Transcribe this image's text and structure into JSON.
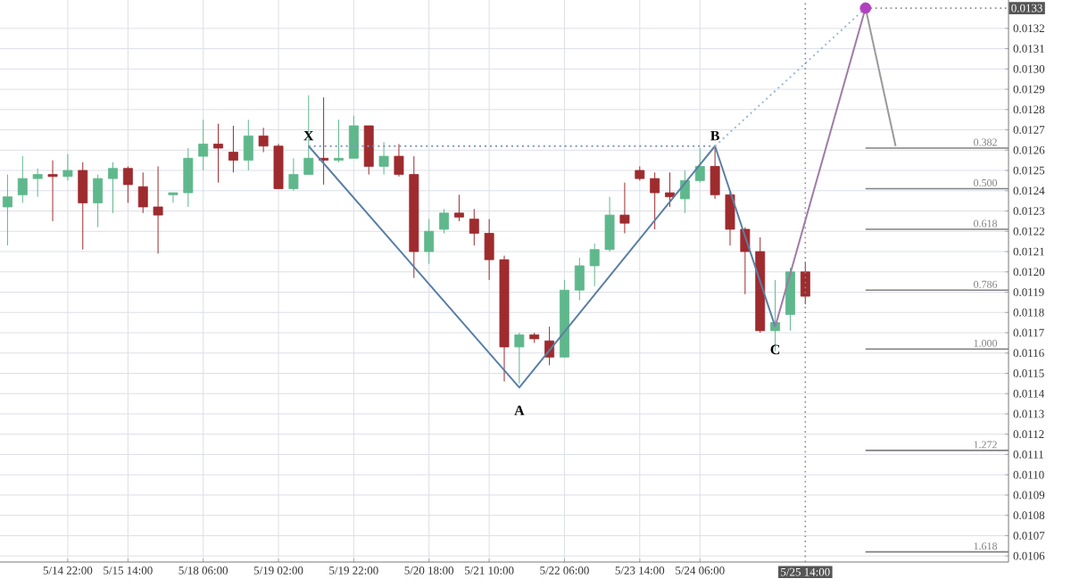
{
  "chart_data": {
    "type": "candlestick",
    "categories": [
      null,
      null,
      null,
      null,
      "5/14 22:00",
      null,
      null,
      null,
      "5/15 14:00",
      null,
      null,
      null,
      null,
      "5/18 06:00",
      null,
      null,
      null,
      null,
      "5/19 02:00",
      null,
      null,
      null,
      null,
      "5/19 22:00",
      null,
      null,
      null,
      null,
      "5/20 18:00",
      null,
      null,
      null,
      "5/21 10:00",
      null,
      null,
      null,
      null,
      "5/22 06:00",
      null,
      null,
      null,
      null,
      "5/23 14:00",
      null,
      null,
      null,
      "5/24 06:00",
      null,
      null,
      null,
      null,
      null,
      null,
      "5/25 14:00",
      null,
      null,
      null,
      null,
      null,
      null,
      null,
      null,
      null,
      null,
      null,
      null,
      null
    ],
    "ylim": [
      0.01057,
      0.01334
    ],
    "yticks": [
      0.0106,
      0.0107,
      0.0108,
      0.0109,
      {
        "value": 0.011,
        "label": "0.0110"
      },
      0.0111,
      0.0112,
      0.0113,
      0.0114,
      0.0115,
      0.0116,
      0.0117,
      0.0118,
      0.0119,
      {
        "value": 0.012,
        "label": "0.0120"
      },
      0.0121,
      0.0122,
      0.0123,
      0.0124,
      0.0125,
      0.0126,
      0.0127,
      0.0128,
      0.0129,
      {
        "value": 0.013,
        "label": "0.0130"
      },
      0.0131,
      0.0132
    ],
    "grid": true,
    "series": [
      {
        "ohlc": [
          [
            0.01232,
            0.01248,
            0.01213,
            0.01237
          ],
          [
            0.01238,
            0.01257,
            0.01234,
            0.01246
          ],
          [
            0.01246,
            0.01251,
            0.01237,
            0.01248
          ],
          [
            0.01248,
            0.01255,
            0.01225,
            0.01247
          ],
          [
            0.01247,
            0.01258,
            0.01245,
            0.0125
          ],
          [
            0.0125,
            0.01254,
            0.01211,
            0.01234
          ],
          [
            0.01234,
            0.01248,
            0.01222,
            0.01246
          ],
          [
            0.01246,
            0.01254,
            0.01229,
            0.01251
          ],
          [
            0.01251,
            0.01252,
            0.01234,
            0.01243
          ],
          [
            0.01242,
            0.01249,
            0.01229,
            0.01232
          ],
          [
            0.01232,
            0.01252,
            0.01209,
            0.01228
          ],
          [
            0.01238,
            0.01239,
            0.01234,
            0.01239
          ],
          [
            0.01239,
            0.01261,
            0.01232,
            0.01256
          ],
          [
            0.01257,
            0.01275,
            0.0125,
            0.01263
          ],
          [
            0.01263,
            0.01273,
            0.01244,
            0.01261
          ],
          [
            0.01259,
            0.01272,
            0.01249,
            0.01255
          ],
          [
            0.01255,
            0.01275,
            0.0125,
            0.01267
          ],
          [
            0.01267,
            0.01271,
            0.01259,
            0.01262
          ],
          [
            0.01262,
            0.01263,
            0.01241,
            0.01241
          ],
          [
            0.01241,
            0.01256,
            0.0124,
            0.01248
          ],
          [
            0.01248,
            0.01287,
            0.01248,
            0.01256
          ],
          [
            0.01256,
            0.01286,
            0.01243,
            0.01255
          ],
          [
            0.01255,
            0.01275,
            0.01254,
            0.01256
          ],
          [
            0.01256,
            0.01277,
            0.01256,
            0.01272
          ],
          [
            0.01272,
            0.01272,
            0.01248,
            0.01252
          ],
          [
            0.01252,
            0.01264,
            0.01248,
            0.01257
          ],
          [
            0.01257,
            0.01263,
            0.01247,
            0.01248
          ],
          [
            0.01248,
            0.01257,
            0.01197,
            0.0121
          ],
          [
            0.0121,
            0.01226,
            0.01204,
            0.0122
          ],
          [
            0.01221,
            0.01231,
            0.01219,
            0.01229
          ],
          [
            0.01229,
            0.01238,
            0.01225,
            0.01227
          ],
          [
            0.01226,
            0.01231,
            0.01213,
            0.01219
          ],
          [
            0.01219,
            0.01226,
            0.01196,
            0.01206
          ],
          [
            0.01206,
            0.01208,
            0.01146,
            0.01163
          ],
          [
            0.01163,
            0.0117,
            0.01145,
            0.01169
          ],
          [
            0.01169,
            0.0117,
            0.01165,
            0.01167
          ],
          [
            0.01166,
            0.01173,
            0.01154,
            0.01158
          ],
          [
            0.01158,
            0.01196,
            0.01158,
            0.01191
          ],
          [
            0.01191,
            0.01207,
            0.01186,
            0.01203
          ],
          [
            0.01203,
            0.01214,
            0.01193,
            0.01211
          ],
          [
            0.01211,
            0.01237,
            0.0121,
            0.01228
          ],
          [
            0.01228,
            0.01244,
            0.01219,
            0.01224
          ],
          [
            0.0125,
            0.01252,
            0.01245,
            0.01246
          ],
          [
            0.01246,
            0.01249,
            0.01221,
            0.01239
          ],
          [
            0.01239,
            0.01249,
            0.01232,
            0.01237
          ],
          [
            0.01236,
            0.0125,
            0.01229,
            0.01245
          ],
          [
            0.01245,
            0.01261,
            0.01244,
            0.01252
          ],
          [
            0.01252,
            0.01262,
            0.01236,
            0.01238
          ],
          [
            0.01238,
            0.0124,
            0.01213,
            0.01221
          ],
          [
            0.01221,
            0.01222,
            0.01189,
            0.0121
          ],
          [
            0.0121,
            0.01217,
            0.0117,
            0.01171
          ],
          [
            0.01171,
            0.01196,
            0.01161,
            0.01175
          ],
          [
            0.01179,
            0.01202,
            0.01171,
            0.012
          ],
          [
            0.012,
            0.01205,
            0.01184,
            0.01188
          ],
          null,
          null,
          null,
          null,
          null,
          null,
          null,
          null,
          null,
          null,
          null,
          null,
          null
        ],
        "colors": [
          "#5fb88c",
          "#5fb88c",
          "#5fb88c",
          "#9e2b2e",
          "#5fb88c",
          "#9e2b2e",
          "#5fb88c",
          "#5fb88c",
          "#9e2b2e",
          "#9e2b2e",
          "#9e2b2e",
          "#5fb88c",
          "#5fb88c",
          "#5fb88c",
          "#9e2b2e",
          "#9e2b2e",
          "#5fb88c",
          "#9e2b2e",
          "#9e2b2e",
          "#5fb88c",
          "#5fb88c",
          "#9e2b2e",
          "#5fb88c",
          "#5fb88c",
          "#9e2b2e",
          "#5fb88c",
          "#9e2b2e",
          "#9e2b2e",
          "#5fb88c",
          "#5fb88c",
          "#9e2b2e",
          "#9e2b2e",
          "#9e2b2e",
          "#9e2b2e",
          "#5fb88c",
          "#9e2b2e",
          "#9e2b2e",
          "#5fb88c",
          "#5fb88c",
          "#5fb88c",
          "#5fb88c",
          "#9e2b2e",
          "#9e2b2e",
          "#9e2b2e",
          "#9e2b2e",
          "#5fb88c",
          "#5fb88c",
          "#9e2b2e",
          "#9e2b2e",
          "#9e2b2e",
          "#9e2b2e",
          "#5fb88c",
          "#5fb88c",
          "#9e2b2e",
          null,
          null,
          null,
          null,
          null,
          null,
          null,
          null,
          null,
          null,
          null,
          null,
          null
        ]
      },
      {
        "type": "line",
        "color": "#5b7fa6",
        "line_style": "solid",
        "values": [
          null,
          null,
          null,
          null,
          null,
          null,
          null,
          null,
          null,
          null,
          null,
          null,
          null,
          null,
          null,
          null,
          null,
          null,
          null,
          null,
          0.01262,
          null,
          null,
          null,
          null,
          null,
          null,
          null,
          null,
          null,
          null,
          null,
          null,
          null,
          0.01143,
          null,
          null,
          null,
          null,
          null,
          null,
          null,
          null,
          null,
          null,
          null,
          null,
          0.01262,
          null,
          null,
          null,
          0.01173,
          null,
          null,
          null,
          null,
          null,
          null,
          null,
          null,
          null,
          null,
          null,
          null,
          null,
          null,
          null
        ],
        "value_labels": [
          null,
          null,
          null,
          null,
          null,
          null,
          null,
          null,
          null,
          null,
          null,
          null,
          null,
          null,
          null,
          null,
          null,
          null,
          null,
          null,
          "X",
          null,
          null,
          null,
          null,
          null,
          null,
          null,
          null,
          null,
          null,
          null,
          null,
          null,
          "A",
          null,
          null,
          null,
          null,
          null,
          null,
          null,
          null,
          null,
          null,
          null,
          null,
          "B",
          null,
          null,
          null,
          "C",
          null,
          null,
          null,
          null,
          null,
          null,
          null,
          null,
          null,
          null,
          null,
          null,
          null,
          null,
          null
        ]
      },
      {
        "type": "line",
        "color": "#7d97b8",
        "line_style": "dotted",
        "values": [
          null,
          null,
          null,
          null,
          null,
          null,
          null,
          null,
          null,
          null,
          null,
          null,
          null,
          null,
          null,
          null,
          null,
          null,
          null,
          null,
          0.01262,
          null,
          null,
          null,
          null,
          null,
          null,
          null,
          null,
          null,
          null,
          null,
          null,
          null,
          null,
          null,
          null,
          null,
          null,
          null,
          null,
          null,
          null,
          null,
          null,
          null,
          null,
          0.01262,
          null,
          null,
          null,
          null,
          null,
          null,
          null,
          null,
          null,
          null,
          null,
          null,
          null,
          null,
          null,
          null,
          null,
          null,
          null
        ]
      },
      {
        "type": "line",
        "color": "#9ab8d4",
        "line_style": "dotted",
        "values": [
          null,
          null,
          null,
          null,
          null,
          null,
          null,
          null,
          null,
          null,
          null,
          null,
          null,
          null,
          null,
          null,
          null,
          null,
          null,
          null,
          null,
          null,
          null,
          null,
          null,
          null,
          null,
          null,
          null,
          null,
          null,
          null,
          null,
          null,
          null,
          null,
          null,
          null,
          null,
          null,
          null,
          null,
          null,
          null,
          null,
          null,
          null,
          0.01262,
          null,
          null,
          null,
          null,
          null,
          null,
          null,
          null,
          null,
          0.0133,
          null,
          null,
          null,
          null,
          null,
          null,
          null,
          null,
          null
        ]
      },
      {
        "type": "line",
        "color": "#a07aa8",
        "line_style": "solid",
        "values": [
          null,
          null,
          null,
          null,
          null,
          null,
          null,
          null,
          null,
          null,
          null,
          null,
          null,
          null,
          null,
          null,
          null,
          null,
          null,
          null,
          null,
          null,
          null,
          null,
          null,
          null,
          null,
          null,
          null,
          null,
          null,
          null,
          null,
          null,
          null,
          null,
          null,
          null,
          null,
          null,
          null,
          null,
          null,
          null,
          null,
          null,
          null,
          null,
          null,
          null,
          null,
          0.01173,
          null,
          null,
          null,
          null,
          null,
          0.0133,
          null,
          null,
          null,
          null,
          null,
          null,
          null,
          null,
          null
        ]
      },
      {
        "type": "line",
        "color": "#9a9a9a",
        "line_style": "solid",
        "values": [
          null,
          null,
          null,
          null,
          null,
          null,
          null,
          null,
          null,
          null,
          null,
          null,
          null,
          null,
          null,
          null,
          null,
          null,
          null,
          null,
          null,
          null,
          null,
          null,
          null,
          null,
          null,
          null,
          null,
          null,
          null,
          null,
          null,
          null,
          null,
          null,
          null,
          null,
          null,
          null,
          null,
          null,
          null,
          null,
          null,
          null,
          null,
          null,
          null,
          null,
          null,
          null,
          null,
          null,
          null,
          null,
          null,
          0.0133,
          null,
          0.01262,
          null,
          null,
          null,
          null,
          null,
          null,
          null
        ]
      },
      {
        "type": "scatter",
        "color": "#b040c0",
        "values": [
          null,
          null,
          null,
          null,
          null,
          null,
          null,
          null,
          null,
          null,
          null,
          null,
          null,
          null,
          null,
          null,
          null,
          null,
          null,
          null,
          null,
          null,
          null,
          null,
          null,
          null,
          null,
          null,
          null,
          null,
          null,
          null,
          null,
          null,
          null,
          null,
          null,
          null,
          null,
          null,
          null,
          null,
          null,
          null,
          null,
          null,
          null,
          null,
          null,
          null,
          null,
          null,
          null,
          null,
          null,
          null,
          null,
          0.0133,
          null,
          null,
          null,
          null,
          null,
          null,
          null,
          null,
          null
        ]
      }
    ],
    "ref_lines": [
      {
        "axis": "y",
        "value": 0.01261,
        "color": "#808080",
        "line_style": "solid"
      },
      {
        "axis": "y",
        "value": 0.01241,
        "color": "#808080",
        "line_style": "solid"
      },
      {
        "axis": "y",
        "value": 0.01221,
        "color": "#808080",
        "line_style": "solid"
      },
      {
        "axis": "y",
        "value": 0.01191,
        "color": "#808080",
        "line_style": "solid"
      },
      {
        "axis": "y",
        "value": 0.01162,
        "color": "#808080",
        "line_style": "solid"
      },
      {
        "axis": "y",
        "value": 0.01112,
        "color": "#808080",
        "line_style": "solid"
      },
      {
        "axis": "y",
        "value": 0.01062,
        "color": "#808080",
        "line_style": "solid"
      },
      {
        "axis": "y",
        "value": 0.0133,
        "label": "0.0133",
        "color": "#888888",
        "line_style": "dotted"
      },
      {
        "axis": "x",
        "value": "5/25 14:00",
        "color": "#888888",
        "line_style": "dotted"
      }
    ],
    "annotations": [
      {
        "text": "0.382",
        "y": 0.01261
      },
      {
        "text": "0.500",
        "y": 0.01241
      },
      {
        "text": "0.618",
        "y": 0.01221
      },
      {
        "text": "0.786",
        "y": 0.01191
      },
      {
        "text": "1.000",
        "y": 0.01162
      },
      {
        "text": "1.272",
        "y": 0.01112
      },
      {
        "text": "1.618",
        "y": 0.01062
      }
    ]
  }
}
